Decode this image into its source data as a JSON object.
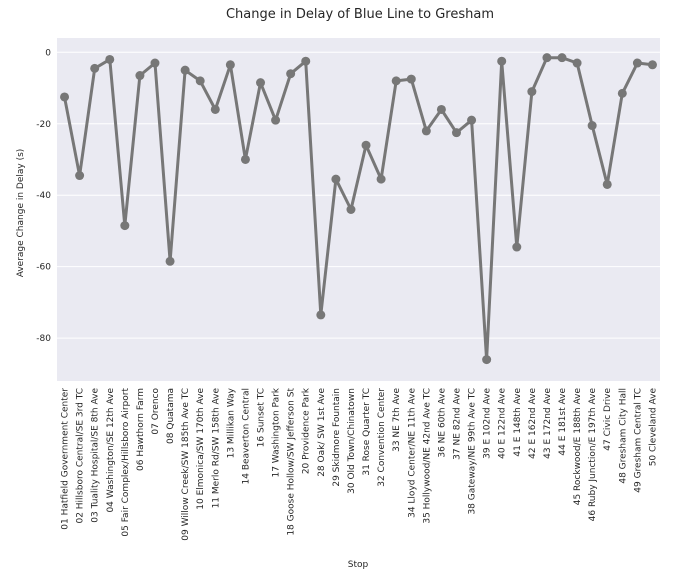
{
  "chart_data": {
    "type": "line",
    "title": "Change in Delay of Blue Line to Gresham",
    "xlabel": "Stop",
    "ylabel": "Average Change in Delay (s)",
    "ylim": [
      -92,
      4
    ],
    "yticks": [
      0,
      -20,
      -40,
      -60,
      -80
    ],
    "grid": true,
    "legend": "none",
    "colors": {
      "background": "#eaeaf2",
      "grid": "#ffffff",
      "line": "#777777",
      "marker": "#777777"
    },
    "categories": [
      "01 Hatfield Government Center",
      "02 Hillsboro Central/SE 3rd TC",
      "03 Tuality Hospital/SE 8th Ave",
      "04 Washington/SE 12th Ave",
      "05 Fair Complex/Hillsboro Airport",
      "06 Hawthorn Farm",
      "07 Orenco",
      "08 Quatama",
      "09 Willow Creek/SW 185th Ave TC",
      "10 Elmonica/SW 170th Ave",
      "11 Merlo Rd/SW 158th Ave",
      "13 Millikan Way",
      "14 Beaverton Central",
      "16 Sunset TC",
      "17 Washington Park",
      "18 Goose Hollow/SW Jefferson St",
      "20 Providence Park",
      "28 Oak/ SW 1st Ave",
      "29 Skidmore Fountain",
      "30 Old Town/Chinatown",
      "31 Rose Quarter TC",
      "32 Convention Center",
      "33 NE 7th Ave",
      "34 Lloyd Center/NE 11th Ave",
      "35 Hollywood/NE 42nd Ave TC",
      "36 NE 60th Ave",
      "37 NE 82nd Ave",
      "38 Gateway/NE 99th Ave TC",
      "39 E 102nd Ave",
      "40 E 122nd Ave",
      "41 E 148th Ave",
      "42 E 162nd Ave",
      "43 E 172nd Ave",
      "44 E 181st Ave",
      "45 Rockwood/E 188th Ave",
      "46 Ruby Junction/E 197th Ave",
      "47 Civic Drive",
      "48 Gresham City Hall",
      "49 Gresham Central TC",
      "50 Cleveland Ave"
    ],
    "values": [
      -12.5,
      -34.5,
      -4.5,
      -2,
      -48.5,
      -6.5,
      -3,
      -58.5,
      -5,
      -8,
      -16,
      -3.5,
      -30,
      -8.5,
      -19,
      -6,
      -2.5,
      -73.5,
      -35.5,
      -44,
      -26,
      -35.5,
      -8,
      -7.5,
      -22,
      -16,
      -22.5,
      -19,
      -86,
      -2.5,
      -54.5,
      -11,
      -1.5,
      -1.5,
      -3,
      -20.5,
      -37,
      -11.5,
      -3,
      -3.5
    ]
  }
}
